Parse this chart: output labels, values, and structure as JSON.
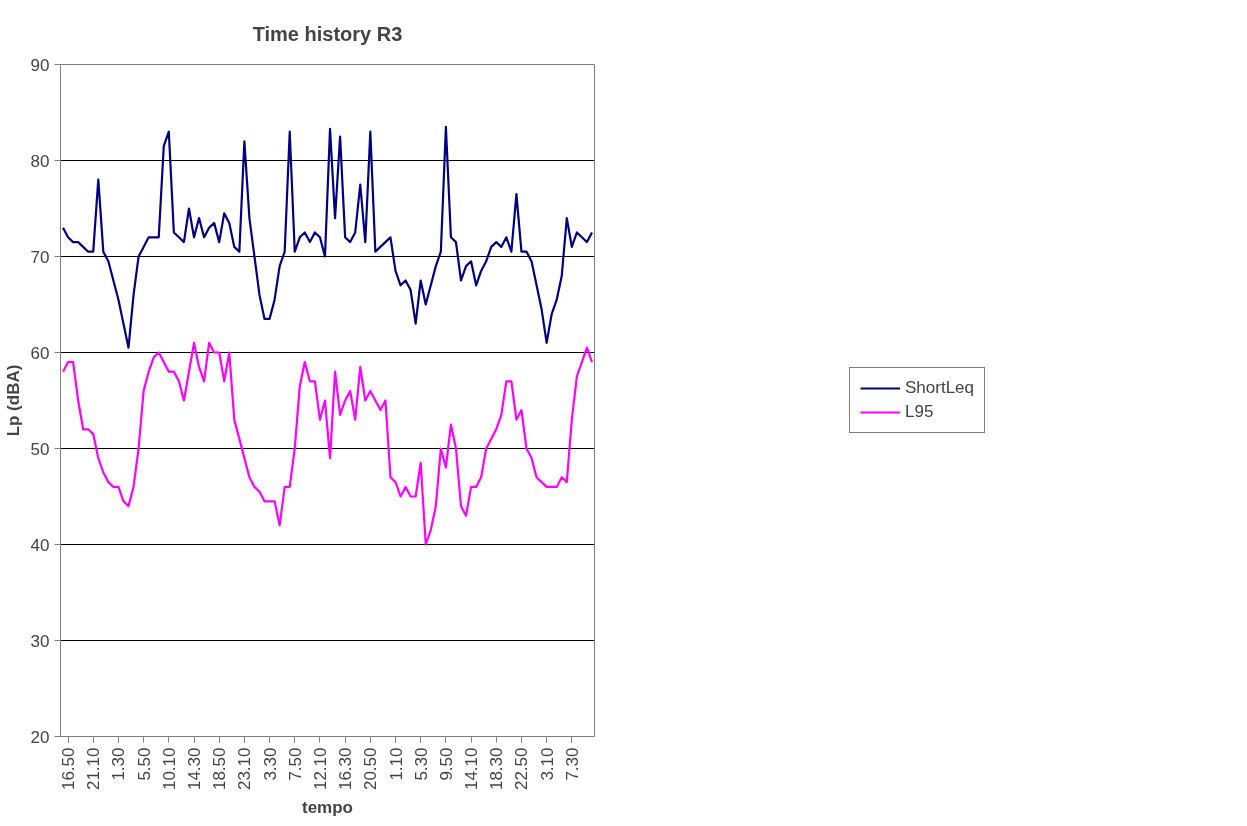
{
  "chart_data": {
    "type": "line",
    "title": "Time history R3",
    "xlabel": "tempo",
    "ylabel": "Lp (dBA)",
    "categories": [
      null,
      "16.50",
      null,
      null,
      null,
      null,
      "21.10",
      null,
      null,
      null,
      null,
      "1.30",
      null,
      null,
      null,
      null,
      "5.50",
      null,
      null,
      null,
      null,
      "10.10",
      null,
      null,
      null,
      null,
      "14.30",
      null,
      null,
      null,
      null,
      "18.50",
      null,
      null,
      null,
      null,
      "23.10",
      null,
      null,
      null,
      null,
      "3.30",
      null,
      null,
      null,
      null,
      "7.50",
      null,
      null,
      null,
      null,
      "12.10",
      null,
      null,
      null,
      null,
      "16.30",
      null,
      null,
      null,
      null,
      "20.50",
      null,
      null,
      null,
      null,
      "1.10",
      null,
      null,
      null,
      null,
      "5.30",
      null,
      null,
      null,
      null,
      "9.50",
      null,
      null,
      null,
      null,
      "14.10",
      null,
      null,
      null,
      null,
      "18.30",
      null,
      null,
      null,
      null,
      "22.50",
      null,
      null,
      null,
      null,
      "3.10",
      null,
      null,
      null,
      null,
      "7.30",
      null,
      null,
      null,
      null
    ],
    "ylim": [
      20,
      90
    ],
    "yticks": [
      20,
      30,
      40,
      50,
      60,
      70,
      80,
      90
    ],
    "grid": "y",
    "legend": "right",
    "line_style": "solid",
    "series": [
      {
        "name": "ShortLeq",
        "color": "#000080",
        "values": [
          73,
          72,
          71.5,
          71.5,
          71,
          70.5,
          70.5,
          78,
          70.5,
          69.5,
          67.5,
          65.5,
          63,
          60.5,
          66,
          70,
          71,
          72,
          72,
          72,
          81.5,
          83,
          72.5,
          72,
          71.5,
          75,
          72,
          74,
          72,
          73,
          73.5,
          71.5,
          74.5,
          73.5,
          71,
          70.5,
          82,
          74,
          70,
          66,
          63.5,
          63.5,
          65.5,
          69,
          70.5,
          83,
          70.5,
          72,
          72.5,
          71.5,
          72.5,
          72,
          70,
          83.3,
          74,
          82.5,
          72,
          71.5,
          72.5,
          77.5,
          71.5,
          83,
          70.5,
          71,
          71.5,
          72,
          68.5,
          67,
          67.5,
          66.5,
          63,
          67.5,
          65,
          67,
          69,
          70.5,
          83.5,
          72,
          71.5,
          67.5,
          69,
          69.5,
          67,
          68.5,
          69.5,
          71,
          71.5,
          71,
          72,
          70.5,
          76.5,
          70.5,
          70.5,
          69.5,
          67,
          64.5,
          61,
          64,
          65.5,
          68,
          74,
          71,
          72.5,
          72,
          71.5,
          72.5
        ]
      },
      {
        "name": "L95",
        "color": "#ff00ff",
        "values": [
          58,
          59,
          59,
          55,
          52,
          52,
          51.5,
          49,
          47.5,
          46.5,
          46,
          46,
          44.5,
          44,
          46,
          50,
          56,
          58,
          59.5,
          60,
          59,
          58,
          58,
          57,
          55,
          58,
          61,
          58.5,
          57,
          61,
          60,
          60,
          57,
          60,
          53,
          51,
          49,
          47,
          46,
          45.5,
          44.5,
          44.5,
          44.5,
          42,
          46,
          46,
          50,
          56.5,
          59,
          57,
          57,
          53,
          55,
          49,
          58,
          53.5,
          55,
          56,
          53,
          58.5,
          55,
          56,
          55,
          54,
          55,
          47,
          46.5,
          45,
          46,
          45,
          45,
          48.5,
          40,
          41.5,
          44,
          50,
          48,
          52.5,
          50,
          44,
          43,
          46,
          46,
          47,
          50,
          51,
          52,
          53.5,
          57,
          57,
          53,
          54,
          50,
          49,
          47,
          46.5,
          46,
          46,
          46,
          47,
          46.5,
          53,
          57.5,
          59,
          60.5,
          59
        ]
      }
    ]
  }
}
